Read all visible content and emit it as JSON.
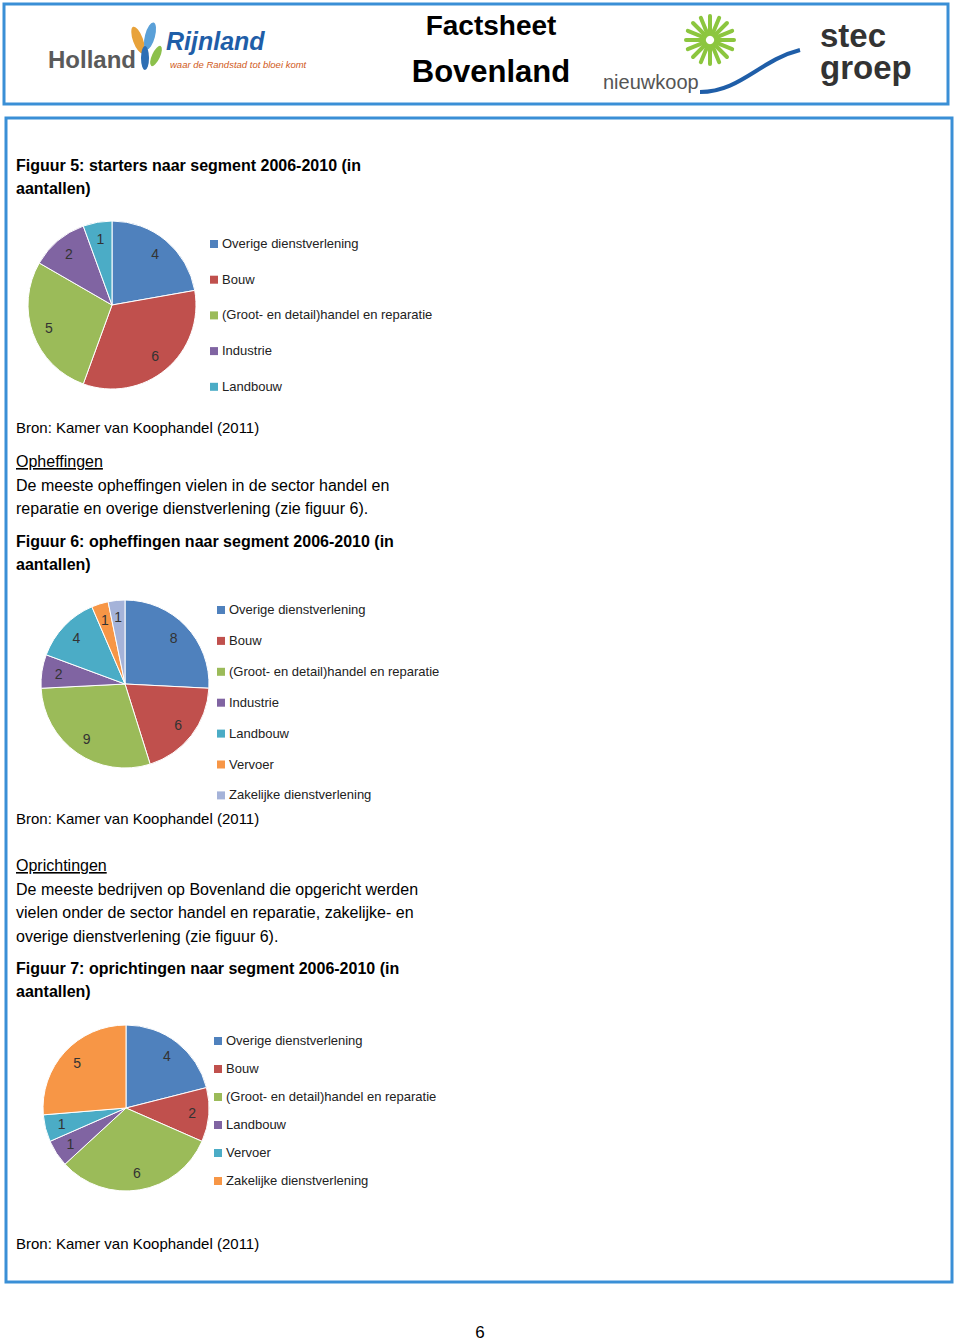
{
  "header": {
    "logo_left_1": "Holland",
    "logo_left_2": "Rijnland",
    "logo_left_tagline": "waar de Randstad tot bloei komt",
    "title_line_1": "Factsheet",
    "title_line_2": "Bovenland",
    "logo_mid": "nieuwkoop",
    "logo_right_1": "stec",
    "logo_right_2": "groep"
  },
  "sections": [
    {
      "heading": "Opheffingen",
      "text_lines": [
        "De meeste opheffingen vielen in de sector handel en",
        "reparatie en overige dienstverlening (zie figuur 6)."
      ]
    },
    {
      "heading": "Oprichtingen",
      "text_lines": [
        "De meeste bedrijven op Bovenland die opgericht werden",
        "vielen onder de sector handel en reparatie, zakelijke- en",
        "overige dienstverlening (zie figuur 6)."
      ]
    }
  ],
  "page_number": 6,
  "chart_data": [
    {
      "type": "pie",
      "title": "Figuur 5: starters naar segment 2006-2010 (in aantallen)",
      "source": "Bron: Kamer van Koophandel (2011)",
      "categories": [
        "Overige dienstverlening",
        "Bouw",
        "(Groot- en detail)handel  en reparatie",
        "Industrie",
        "Landbouw"
      ],
      "values": [
        4,
        6,
        5,
        2,
        1
      ],
      "colors": [
        "#4f81bd",
        "#c0504d",
        "#9bbb59",
        "#8064a2",
        "#4bacc6"
      ],
      "data_labels": true,
      "legend": "right"
    },
    {
      "type": "pie",
      "title": "Figuur 6: opheffingen naar segment 2006-2010 (in aantallen)",
      "source": "Bron: Kamer van Koophandel (2011)",
      "categories": [
        "Overige dienstverlening",
        "Bouw",
        "(Groot- en detail)handel  en reparatie",
        "Industrie",
        "Landbouw",
        "Vervoer",
        "Zakelijke dienstverlening"
      ],
      "values": [
        8,
        6,
        9,
        2,
        4,
        1,
        1
      ],
      "colors": [
        "#4f81bd",
        "#c0504d",
        "#9bbb59",
        "#8064a2",
        "#4bacc6",
        "#f79646",
        "#a5b3d9"
      ],
      "data_labels": true,
      "legend": "right"
    },
    {
      "type": "pie",
      "title": "Figuur 7: oprichtingen naar segment 2006-2010 (in aantallen)",
      "source": "Bron: Kamer van Koophandel (2011)",
      "categories": [
        "Overige dienstverlening",
        "Bouw",
        "(Groot- en detail)handel  en reparatie",
        "Landbouw",
        "Vervoer",
        "Zakelijke dienstverlening"
      ],
      "values": [
        4,
        2,
        6,
        1,
        1,
        5
      ],
      "colors": [
        "#4f81bd",
        "#c0504d",
        "#9bbb59",
        "#8064a2",
        "#4bacc6",
        "#f79646"
      ],
      "data_labels": true,
      "legend": "right"
    }
  ]
}
